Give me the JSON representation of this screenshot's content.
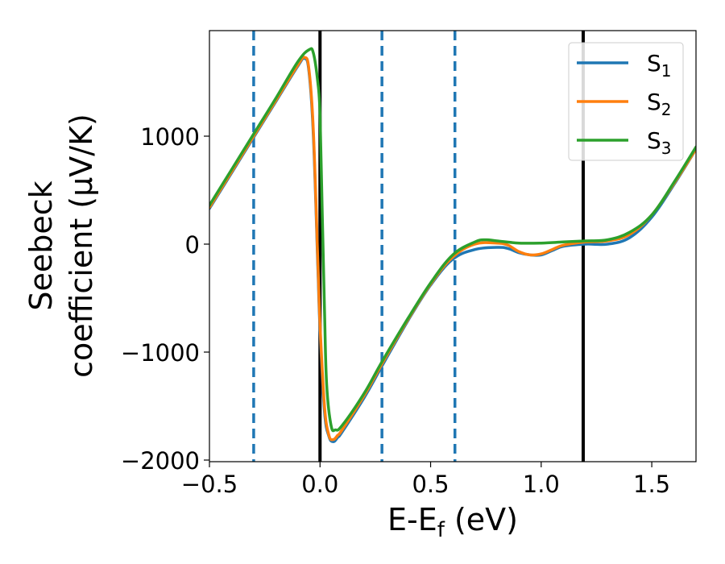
{
  "chart_data": {
    "type": "line",
    "xlabel_parts": [
      "E-E",
      "f",
      " (eV)"
    ],
    "ylabel_lines": [
      "Seebeck",
      "coefficient  (μV/K)"
    ],
    "xlim": [
      -0.5,
      1.7
    ],
    "ylim": [
      -2000,
      2000
    ],
    "xticks": [
      -0.5,
      0.0,
      0.5,
      1.0,
      1.5
    ],
    "xtick_labels": [
      "−0.5",
      "0.0",
      "0.5",
      "1.0",
      "1.5"
    ],
    "yticks": [
      -2000,
      -1000,
      0,
      1000
    ],
    "ytick_labels": [
      "−2000",
      "−1000",
      "0",
      "1000"
    ],
    "grid": false,
    "legend_position": "top-right",
    "vlines": [
      {
        "x": -0.3,
        "style": "dashed",
        "color": "#1f77b4"
      },
      {
        "x": 0.0,
        "style": "solid",
        "color": "#000000"
      },
      {
        "x": 0.28,
        "style": "dashed",
        "color": "#1f77b4"
      },
      {
        "x": 0.61,
        "style": "dashed",
        "color": "#1f77b4"
      },
      {
        "x": 1.19,
        "style": "solid",
        "color": "#000000"
      }
    ],
    "series": [
      {
        "name_base": "S",
        "name_sub": "1",
        "color": "#1f77b4",
        "x": [
          -0.5,
          -0.4,
          -0.3,
          -0.2,
          -0.1,
          -0.07,
          -0.05,
          -0.03,
          -0.01,
          0.0,
          0.02,
          0.04,
          0.06,
          0.08,
          0.1,
          0.2,
          0.28,
          0.4,
          0.5,
          0.6,
          0.7,
          0.8,
          0.85,
          0.9,
          0.95,
          1.0,
          1.05,
          1.1,
          1.2,
          1.3,
          1.4,
          1.5,
          1.6,
          1.7
        ],
        "y": [
          330,
          660,
          990,
          1320,
          1650,
          1720,
          1600,
          1000,
          -200,
          -800,
          -1550,
          -1780,
          -1830,
          -1790,
          -1740,
          -1420,
          -1130,
          -700,
          -380,
          -140,
          -50,
          -30,
          -40,
          -80,
          -100,
          -100,
          -60,
          -20,
          0,
          0,
          60,
          250,
          550,
          880
        ]
      },
      {
        "name_base": "S",
        "name_sub": "2",
        "color": "#ff7f0e",
        "x": [
          -0.5,
          -0.4,
          -0.3,
          -0.2,
          -0.1,
          -0.07,
          -0.05,
          -0.03,
          -0.01,
          0.0,
          0.02,
          0.04,
          0.06,
          0.08,
          0.1,
          0.2,
          0.28,
          0.4,
          0.5,
          0.6,
          0.7,
          0.8,
          0.85,
          0.9,
          0.95,
          1.0,
          1.05,
          1.1,
          1.2,
          1.3,
          1.4,
          1.5,
          1.6,
          1.7
        ],
        "y": [
          340,
          670,
          1000,
          1330,
          1660,
          1730,
          1620,
          1050,
          -150,
          -750,
          -1500,
          -1770,
          -1810,
          -1770,
          -1720,
          -1400,
          -1110,
          -690,
          -370,
          -120,
          0,
          10,
          -10,
          -70,
          -100,
          -90,
          -50,
          -10,
          20,
          30,
          90,
          270,
          560,
          880
        ]
      },
      {
        "name_base": "S",
        "name_sub": "3",
        "color": "#2ca02c",
        "x": [
          -0.5,
          -0.4,
          -0.3,
          -0.2,
          -0.1,
          -0.05,
          -0.03,
          -0.01,
          0.0,
          0.01,
          0.02,
          0.03,
          0.05,
          0.07,
          0.1,
          0.2,
          0.28,
          0.4,
          0.5,
          0.6,
          0.7,
          0.75,
          0.8,
          0.9,
          1.0,
          1.1,
          1.2,
          1.3,
          1.4,
          1.5,
          1.6,
          1.7
        ],
        "y": [
          360,
          690,
          1020,
          1350,
          1690,
          1800,
          1770,
          1500,
          1200,
          300,
          -600,
          -1300,
          -1680,
          -1720,
          -1680,
          -1380,
          -1090,
          -680,
          -360,
          -100,
          20,
          40,
          30,
          10,
          10,
          20,
          30,
          40,
          110,
          270,
          570,
          900
        ]
      }
    ]
  }
}
